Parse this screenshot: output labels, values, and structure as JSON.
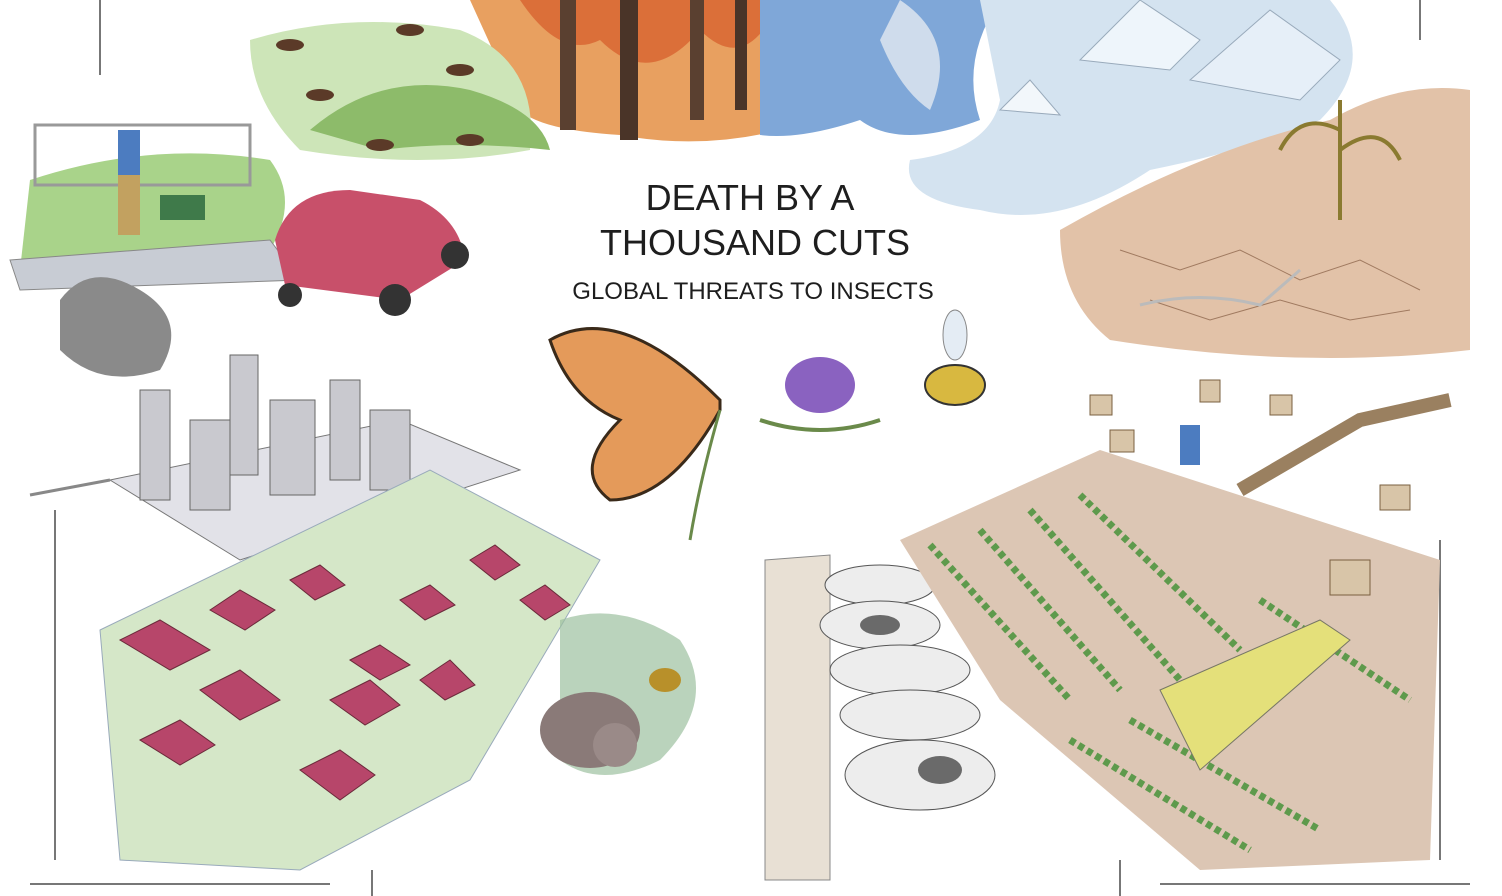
{
  "title": [
    "DEATH BY A",
    "THOUSAND CUTS"
  ],
  "subtitle": "GLOBAL THREATS TO INSECTS"
}
